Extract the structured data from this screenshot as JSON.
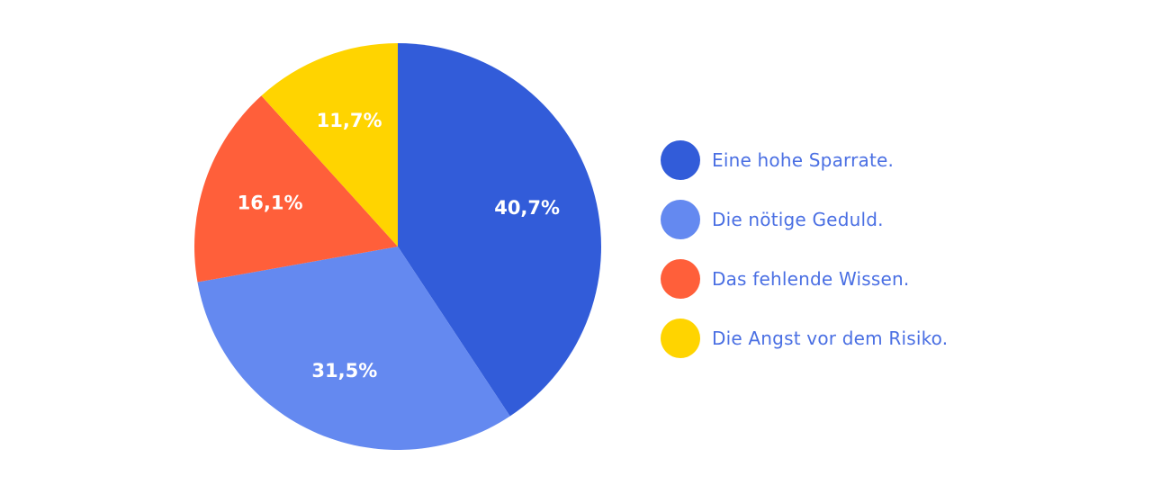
{
  "chart_data": {
    "type": "pie",
    "title": "",
    "slices": [
      {
        "label": "Eine hohe Sparrate.",
        "value": 40.7,
        "display": "40,7%",
        "color": "#325CD9"
      },
      {
        "label": "Die nötige Geduld.",
        "value": 31.5,
        "display": "31,5%",
        "color": "#6489F0"
      },
      {
        "label": "Das fehlende Wissen.",
        "value": 16.1,
        "display": "16,1%",
        "color": "#FF5F3A"
      },
      {
        "label": "Die Angst vor dem Risiko.",
        "value": 11.7,
        "display": "11,7%",
        "color": "#FFD400"
      }
    ],
    "start_angle": "top",
    "direction": "clockwise",
    "legend_position": "right"
  }
}
